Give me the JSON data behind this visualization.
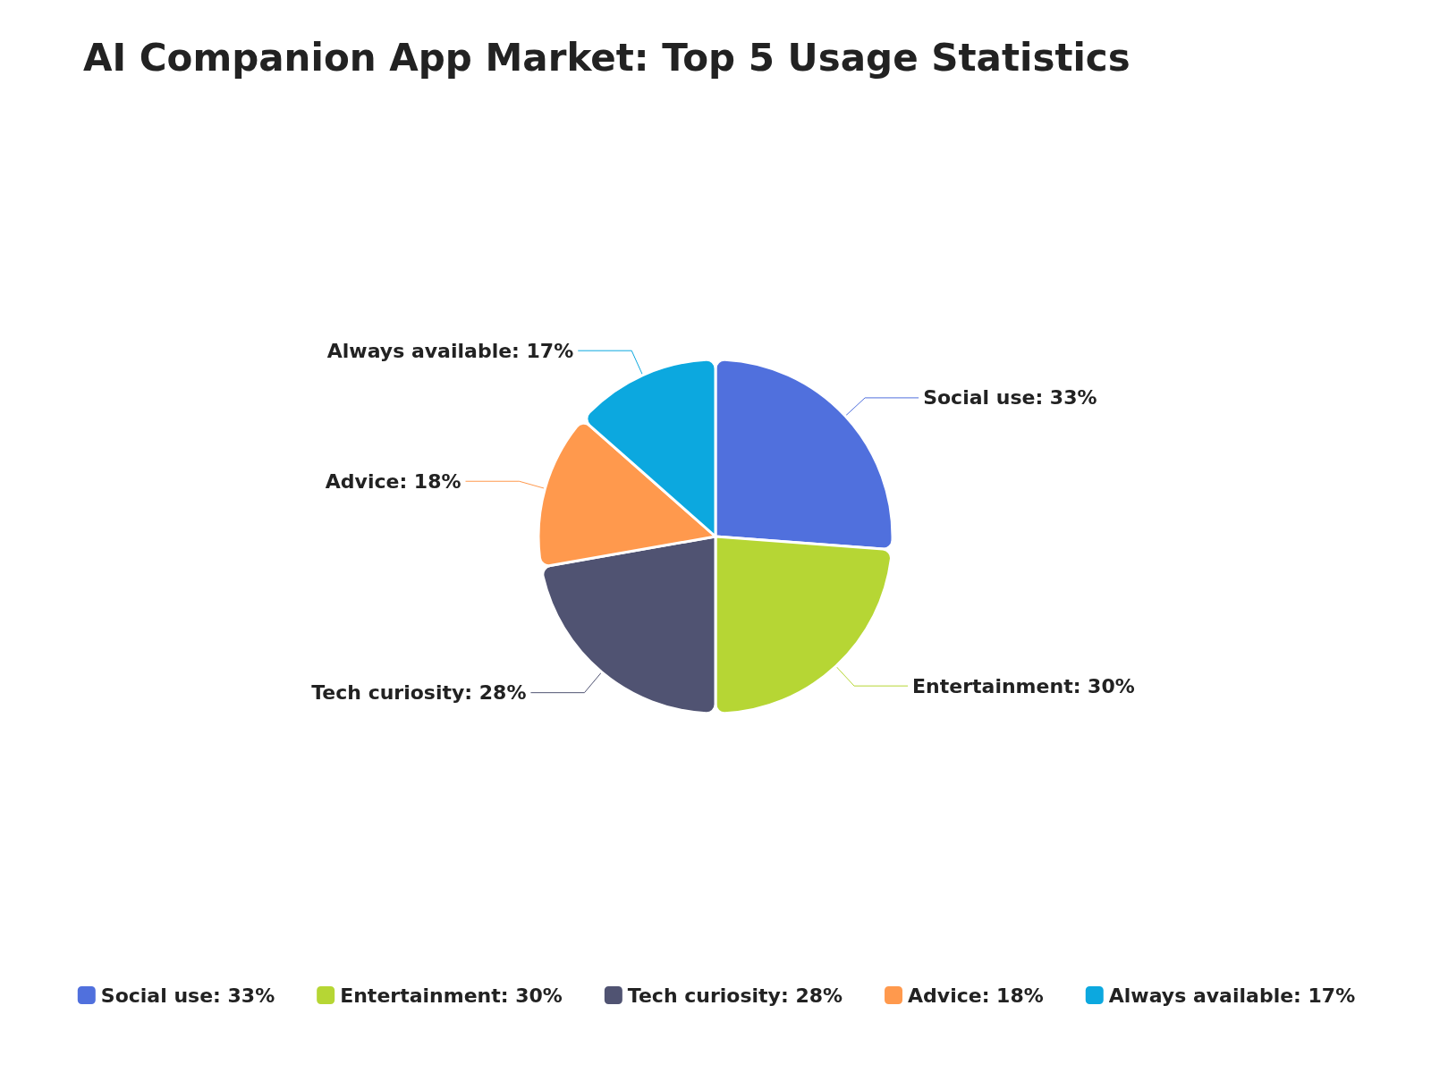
{
  "chart_data": {
    "type": "pie",
    "title": "AI Companion App Market: Top 5 Usage Statistics",
    "categories": [
      "Social use: 33%",
      "Entertainment: 30%",
      "Tech curiosity: 28%",
      "Advice: 18%",
      "Always available: 17%"
    ],
    "values": [
      33,
      30,
      28,
      18,
      17
    ],
    "colors": [
      "#5070dd",
      "#b6d634",
      "#505372",
      "#ff994d",
      "#0ca8df"
    ],
    "legend": "bottom"
  }
}
